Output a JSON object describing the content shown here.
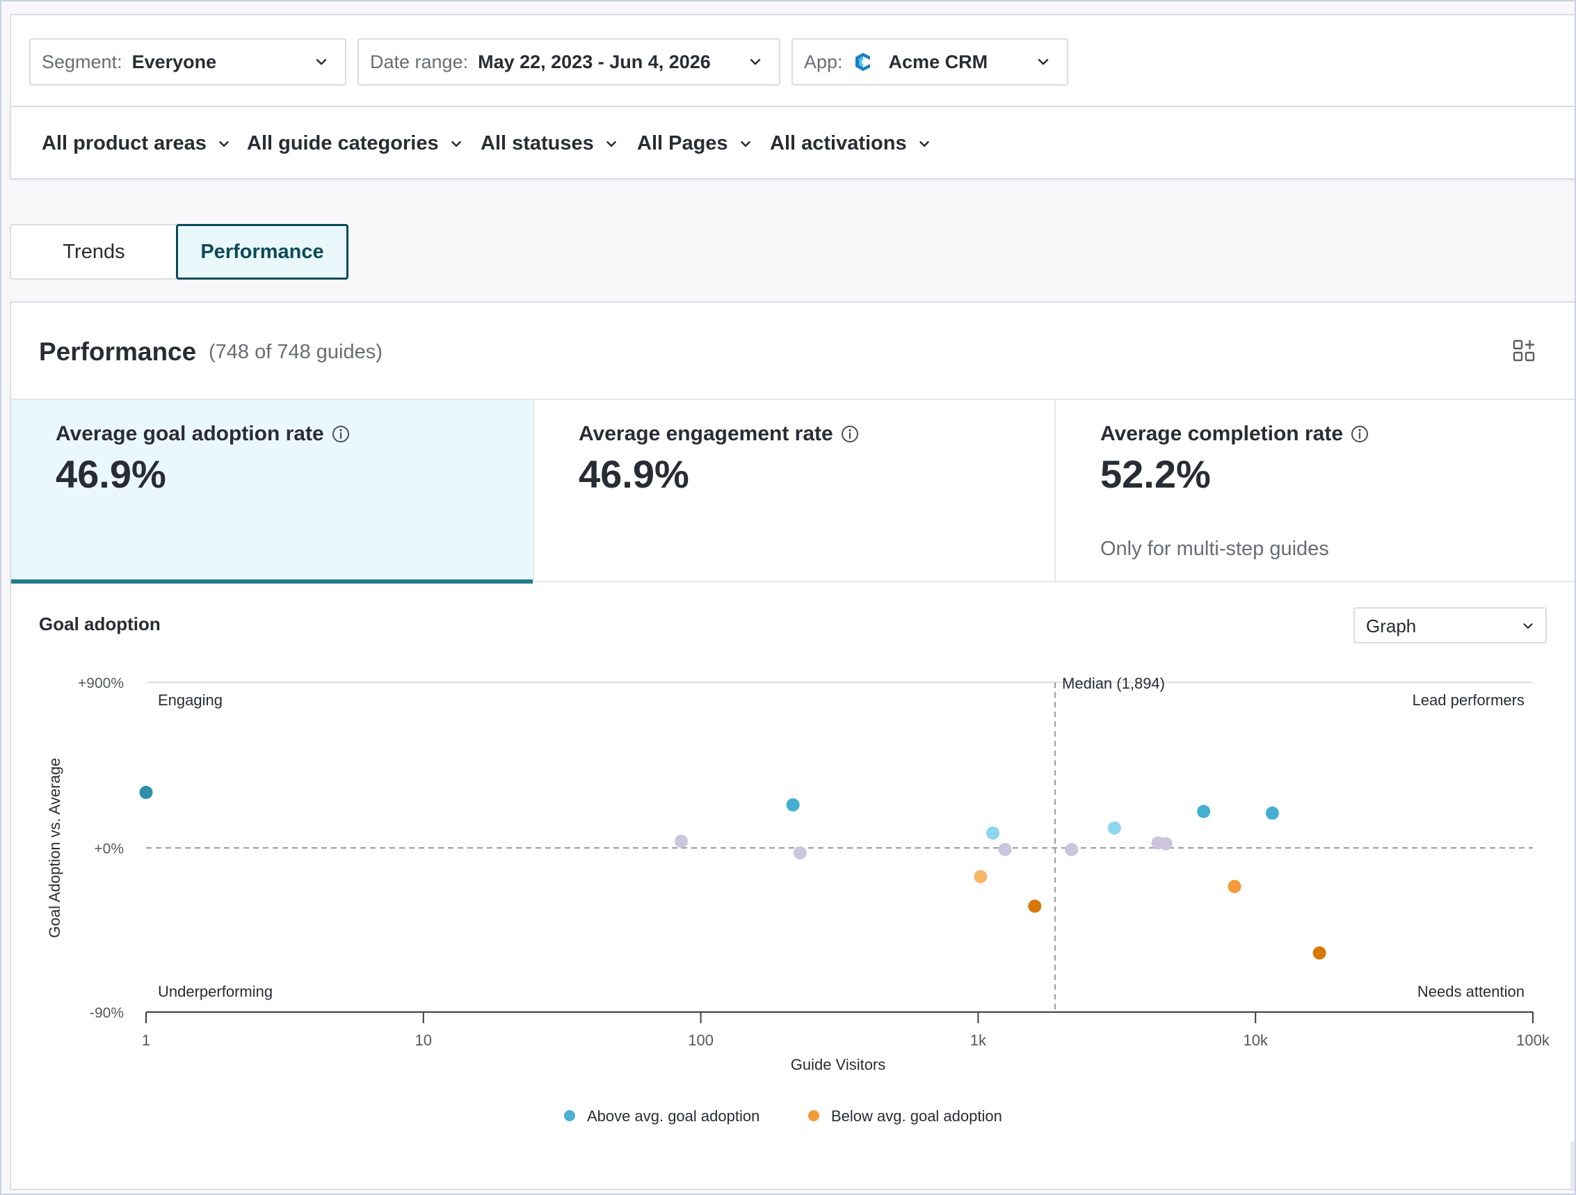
{
  "filters": {
    "segment": {
      "label": "Segment:",
      "value": "Everyone"
    },
    "date_range": {
      "label": "Date range:",
      "value": "May 22, 2023 - Jun 4, 2026"
    },
    "app": {
      "label": "App:",
      "value": "Acme CRM"
    }
  },
  "sub_filters": [
    "All product areas",
    "All guide categories",
    "All statuses",
    "All Pages",
    "All activations"
  ],
  "tabs": {
    "trends": "Trends",
    "performance": "Performance",
    "active": "performance"
  },
  "card": {
    "title": "Performance",
    "count": "(748 of 748 guides)"
  },
  "metrics": [
    {
      "label": "Average goal adoption rate",
      "value": "46.9%",
      "note": "",
      "selected": true
    },
    {
      "label": "Average engagement rate",
      "value": "46.9%",
      "note": ""
    },
    {
      "label": "Average completion rate",
      "value": "52.2%",
      "note": "Only for multi-step guides"
    }
  ],
  "section": {
    "title": "Goal adoption",
    "view": "Graph"
  },
  "colors": {
    "accent": "#1e7b8c",
    "above": "#4ab1d3",
    "below": "#f29b38",
    "neutral": "#c9c3dc"
  },
  "chart_data": {
    "type": "scatter",
    "xlabel": "Guide Visitors",
    "ylabel": "Goal Adoption vs. Average",
    "x_scale": "log",
    "xlim": [
      1,
      100000
    ],
    "x_ticks": [
      "1",
      "10",
      "100",
      "1k",
      "10k",
      "100k"
    ],
    "y_ticks": [
      "+900%",
      "+0%",
      "-90%"
    ],
    "median_label": "Median (1,894)",
    "median_x": 1894,
    "quadrants": {
      "top_left": "Engaging",
      "top_right": "Lead performers",
      "bottom_left": "Underperforming",
      "bottom_right": "Needs attention"
    },
    "legend": [
      "Above avg. goal adoption",
      "Below avg. goal adoption"
    ],
    "points": [
      {
        "x": 1,
        "y_frac": 0.335,
        "group": "above-dark"
      },
      {
        "x": 215,
        "y_frac": 0.26,
        "group": "above"
      },
      {
        "x": 85,
        "y_frac": 0.04,
        "group": "neutral"
      },
      {
        "x": 228,
        "y_frac": -0.03,
        "group": "neutral"
      },
      {
        "x": 1130,
        "y_frac": 0.09,
        "group": "above-light"
      },
      {
        "x": 1250,
        "y_frac": -0.01,
        "group": "neutral"
      },
      {
        "x": 1020,
        "y_frac": -0.175,
        "group": "below-light"
      },
      {
        "x": 1600,
        "y_frac": -0.355,
        "group": "below-dark"
      },
      {
        "x": 2170,
        "y_frac": -0.01,
        "group": "neutral"
      },
      {
        "x": 3100,
        "y_frac": 0.12,
        "group": "above-light"
      },
      {
        "x": 4450,
        "y_frac": 0.03,
        "group": "neutral"
      },
      {
        "x": 4750,
        "y_frac": 0.025,
        "group": "neutral"
      },
      {
        "x": 6500,
        "y_frac": 0.22,
        "group": "above"
      },
      {
        "x": 11500,
        "y_frac": 0.21,
        "group": "above"
      },
      {
        "x": 8400,
        "y_frac": -0.235,
        "group": "below"
      },
      {
        "x": 17000,
        "y_frac": -0.64,
        "group": "below-dark"
      }
    ]
  }
}
